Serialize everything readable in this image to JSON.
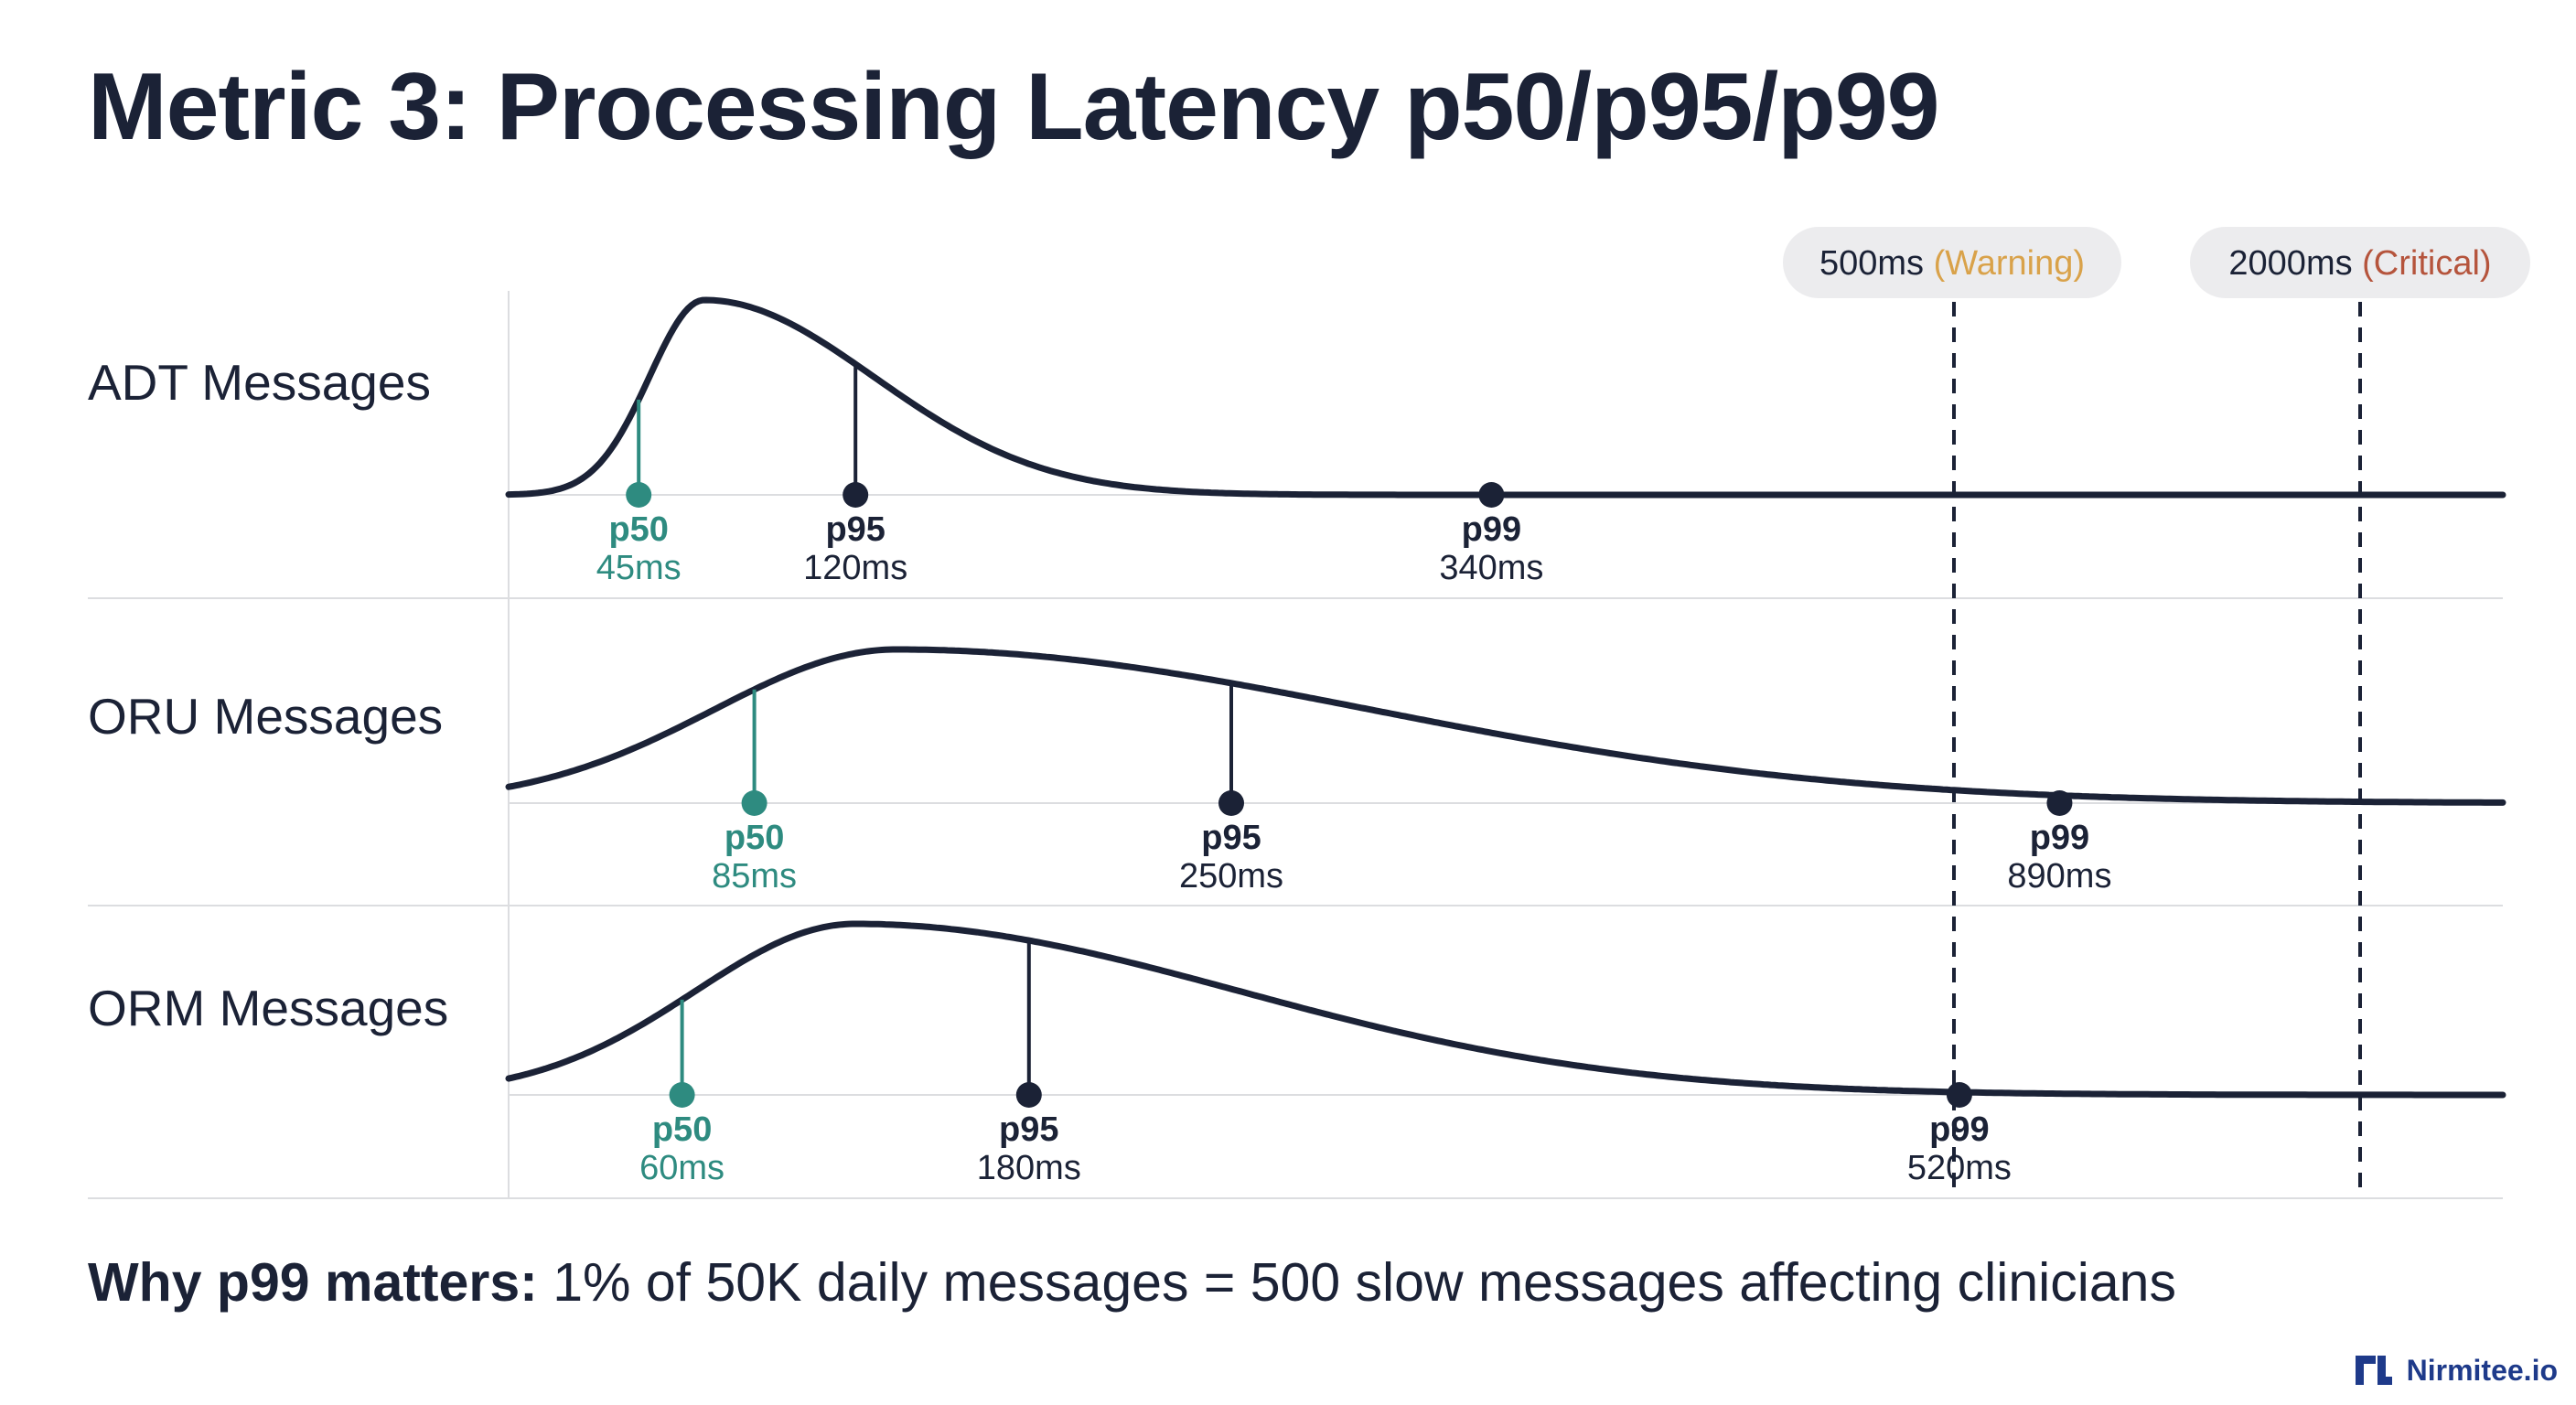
{
  "title": "Metric 3: Processing Latency p50/p95/p99",
  "footnote": {
    "bold": "Why p99 matters:",
    "text": " 1% of 50K daily messages = 500 slow messages affecting clinicians"
  },
  "brand": {
    "name": "Nirmitee.io",
    "logo_icon": "nirmitee-logo-icon"
  },
  "colors": {
    "ink": "#1b2236",
    "p50": "#2e8b80",
    "warning": "#d9a24a",
    "critical": "#b5543c",
    "grid": "#dcdde0",
    "pill": "#ececee"
  },
  "chart_data": {
    "type": "line",
    "title": "",
    "xlabel": "",
    "ylabel": "",
    "x_unit": "ms",
    "thresholds": [
      {
        "value": 500,
        "value_label": "500ms",
        "label": "(Warning)",
        "color": "#d9a24a"
      },
      {
        "value": 2000,
        "value_label": "2000ms",
        "label": "(Critical)",
        "color": "#b5543c"
      }
    ],
    "series": [
      {
        "name": "ADT Messages",
        "percentiles": [
          {
            "name": "p50",
            "value": 45,
            "label": "45ms"
          },
          {
            "name": "p95",
            "value": 120,
            "label": "120ms"
          },
          {
            "name": "p99",
            "value": 340,
            "label": "340ms"
          }
        ]
      },
      {
        "name": "ORU Messages",
        "percentiles": [
          {
            "name": "p50",
            "value": 85,
            "label": "85ms"
          },
          {
            "name": "p95",
            "value": 250,
            "label": "250ms"
          },
          {
            "name": "p99",
            "value": 890,
            "label": "890ms"
          }
        ]
      },
      {
        "name": "ORM Messages",
        "percentiles": [
          {
            "name": "p50",
            "value": 60,
            "label": "60ms"
          },
          {
            "name": "p95",
            "value": 180,
            "label": "180ms"
          },
          {
            "name": "p99",
            "value": 520,
            "label": "520ms"
          }
        ]
      }
    ]
  }
}
